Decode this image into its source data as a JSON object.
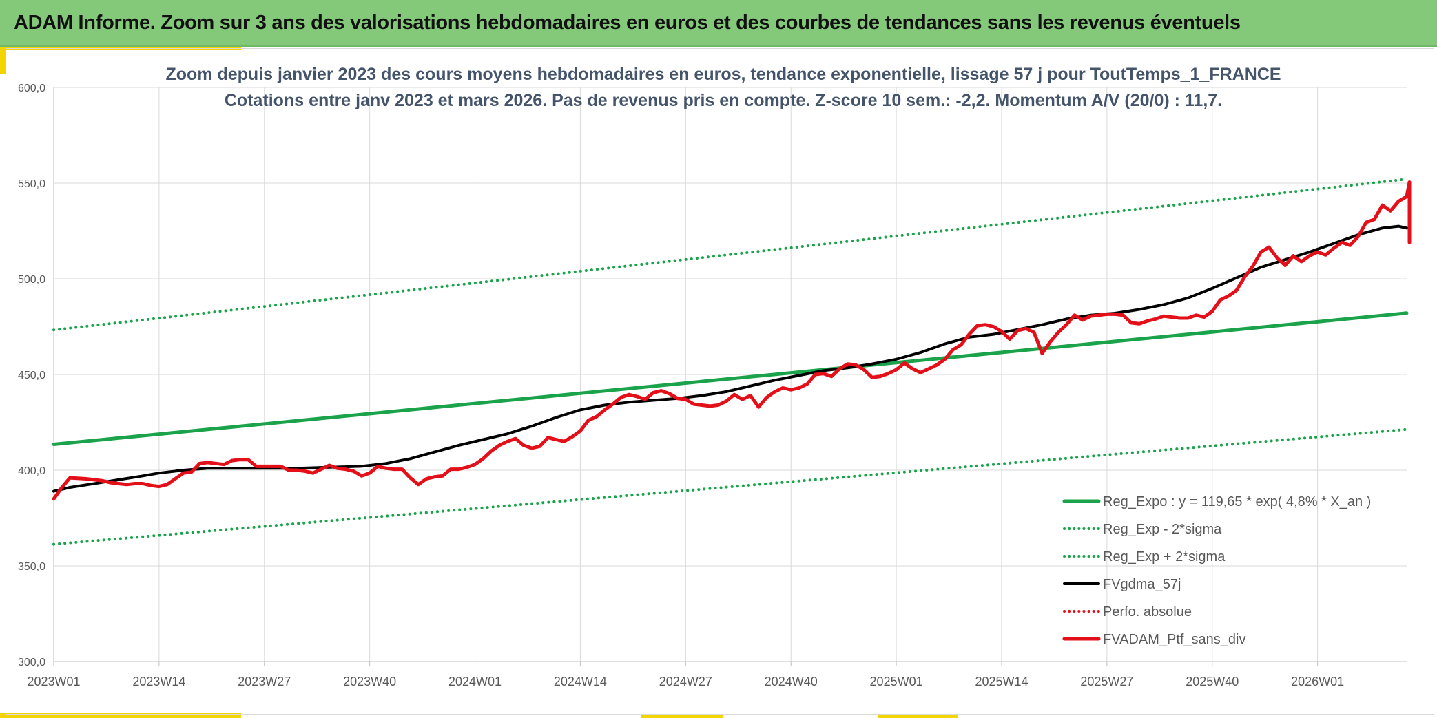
{
  "header": {
    "title": "ADAM Informe. Zoom sur 3 ans des valorisations hebdomadaires en euros et des courbes de tendances sans les revenus éventuels"
  },
  "colors": {
    "header_bg": "#84c87a",
    "reg_green": "#1aa34a",
    "ma_black": "#000000",
    "perf_red": "#e3101a",
    "grid": "#d9d9d9",
    "accent_yellow": "#f3d400"
  },
  "chart_data": {
    "type": "line",
    "title_lines": [
      "Zoom depuis janvier 2023 des cours moyens hebdomadaires en euros, tendance exponentielle, lissage 57 j pour ToutTemps_1_FRANCE",
      "Cotations entre janv 2023 et mars 2026. Pas de revenus pris en compte. Z-score 10 sem.: -2,2. Momentum A/V (20/0) : 11,7."
    ],
    "x_index_range": [
      0,
      167
    ],
    "ylim": [
      300,
      600
    ],
    "y_ticks": [
      "300,0",
      "350,0",
      "400,0",
      "450,0",
      "500,0",
      "550,0",
      "600,0"
    ],
    "x_ticks": [
      {
        "label": "2023W01",
        "i": 0
      },
      {
        "label": "2023W14",
        "i": 13
      },
      {
        "label": "2023W27",
        "i": 26
      },
      {
        "label": "2023W40",
        "i": 39
      },
      {
        "label": "2024W01",
        "i": 52
      },
      {
        "label": "2024W14",
        "i": 65
      },
      {
        "label": "2024W27",
        "i": 78
      },
      {
        "label": "2024W40",
        "i": 91
      },
      {
        "label": "2025W01",
        "i": 104
      },
      {
        "label": "2025W14",
        "i": 117
      },
      {
        "label": "2025W27",
        "i": 130
      },
      {
        "label": "2025W40",
        "i": 143
      },
      {
        "label": "2026W01",
        "i": 156
      }
    ],
    "series": [
      {
        "name": "Reg_Expo : y = 119,65 * exp( 4,8% *  X_an )",
        "style": "solid",
        "color": "#1aa34a",
        "width": 5,
        "points": [
          [
            0,
            413.5
          ],
          [
            167,
            482.1
          ]
        ]
      },
      {
        "name": "Reg_Exp - 2*sigma",
        "style": "dotted",
        "color": "#1aa34a",
        "width": 4,
        "points": [
          [
            0,
            361.3
          ],
          [
            167,
            421.3
          ]
        ]
      },
      {
        "name": "Reg_Exp + 2*sigma",
        "style": "dotted",
        "color": "#1aa34a",
        "width": 4,
        "points": [
          [
            0,
            473.3
          ],
          [
            167,
            552.1
          ]
        ]
      },
      {
        "name": "FVgdma_57j",
        "style": "solid",
        "color": "#000000",
        "width": 4,
        "points": [
          [
            0,
            389
          ],
          [
            2,
            391
          ],
          [
            5,
            393
          ],
          [
            8,
            395
          ],
          [
            11,
            397
          ],
          [
            13,
            398.5
          ],
          [
            16,
            400
          ],
          [
            19,
            401
          ],
          [
            22,
            401
          ],
          [
            26,
            401
          ],
          [
            30,
            401
          ],
          [
            34,
            401.5
          ],
          [
            38,
            402
          ],
          [
            41,
            403.5
          ],
          [
            44,
            406
          ],
          [
            47,
            409.5
          ],
          [
            50,
            413
          ],
          [
            53,
            416
          ],
          [
            56,
            419
          ],
          [
            59,
            423
          ],
          [
            62,
            427.5
          ],
          [
            65,
            431.5
          ],
          [
            68,
            434
          ],
          [
            71,
            435.5
          ],
          [
            74,
            436.5
          ],
          [
            77,
            437.5
          ],
          [
            80,
            439
          ],
          [
            83,
            441
          ],
          [
            86,
            444
          ],
          [
            89,
            447
          ],
          [
            92,
            449.5
          ],
          [
            95,
            452
          ],
          [
            98,
            453.5
          ],
          [
            101,
            455.5
          ],
          [
            104,
            458
          ],
          [
            107,
            461.5
          ],
          [
            110,
            466
          ],
          [
            113,
            469.5
          ],
          [
            116,
            471
          ],
          [
            119,
            473.5
          ],
          [
            122,
            476
          ],
          [
            125,
            479
          ],
          [
            128,
            481
          ],
          [
            131,
            482
          ],
          [
            134,
            484
          ],
          [
            137,
            486.5
          ],
          [
            140,
            490
          ],
          [
            143,
            495
          ],
          [
            146,
            500.5
          ],
          [
            149,
            506
          ],
          [
            152,
            510
          ],
          [
            155,
            514
          ],
          [
            158,
            518.5
          ],
          [
            161,
            523
          ],
          [
            164,
            526.5
          ],
          [
            166,
            527.5
          ],
          [
            167,
            526.5
          ]
        ]
      },
      {
        "name": "Perfo. absolue",
        "style": "dotted",
        "color": "#e3101a",
        "width": 4,
        "points": []
      },
      {
        "name": "FVADAM_Ptf_sans_div",
        "style": "solid",
        "color": "#e3101a",
        "width": 5,
        "points": [
          [
            0,
            385
          ],
          [
            1,
            391
          ],
          [
            2,
            396
          ],
          [
            4,
            395.5
          ],
          [
            5,
            395
          ],
          [
            6,
            394.5
          ],
          [
            7,
            393.5
          ],
          [
            8,
            393
          ],
          [
            9,
            392.5
          ],
          [
            10,
            393
          ],
          [
            11,
            393
          ],
          [
            12,
            392
          ],
          [
            13,
            391.5
          ],
          [
            14,
            392.5
          ],
          [
            15,
            395.5
          ],
          [
            16,
            398.5
          ],
          [
            17,
            399
          ],
          [
            18,
            403.5
          ],
          [
            19,
            404
          ],
          [
            20,
            403.5
          ],
          [
            21,
            403
          ],
          [
            22,
            405
          ],
          [
            23,
            405.5
          ],
          [
            24,
            405.5
          ],
          [
            25,
            402
          ],
          [
            26,
            402
          ],
          [
            27,
            402
          ],
          [
            28,
            402
          ],
          [
            29,
            400
          ],
          [
            30,
            400
          ],
          [
            31,
            399.5
          ],
          [
            32,
            398.5
          ],
          [
            33,
            400.5
          ],
          [
            34,
            402.5
          ],
          [
            35,
            401
          ],
          [
            36,
            400.5
          ],
          [
            37,
            399.5
          ],
          [
            38,
            397
          ],
          [
            39,
            398.5
          ],
          [
            40,
            402
          ],
          [
            41,
            401
          ],
          [
            42,
            400.5
          ],
          [
            43,
            400.5
          ],
          [
            44,
            396
          ],
          [
            45,
            392.5
          ],
          [
            46,
            395.5
          ],
          [
            47,
            396.5
          ],
          [
            48,
            397
          ],
          [
            49,
            400.5
          ],
          [
            50,
            400.5
          ],
          [
            51,
            401.5
          ],
          [
            52,
            403
          ],
          [
            53,
            406
          ],
          [
            54,
            410
          ],
          [
            55,
            413
          ],
          [
            56,
            415
          ],
          [
            57,
            416.5
          ],
          [
            58,
            413
          ],
          [
            59,
            411.5
          ],
          [
            60,
            412.5
          ],
          [
            61,
            417
          ],
          [
            62,
            416
          ],
          [
            63,
            415
          ],
          [
            64,
            417.5
          ],
          [
            65,
            420.5
          ],
          [
            66,
            426
          ],
          [
            67,
            428
          ],
          [
            68,
            431.5
          ],
          [
            69,
            434.5
          ],
          [
            70,
            438
          ],
          [
            71,
            439.5
          ],
          [
            72,
            438.5
          ],
          [
            73,
            437
          ],
          [
            74,
            440.5
          ],
          [
            75,
            441.5
          ],
          [
            76,
            440
          ],
          [
            77,
            437.5
          ],
          [
            78,
            437
          ],
          [
            79,
            434.5
          ],
          [
            80,
            434
          ],
          [
            81,
            433.5
          ],
          [
            82,
            434
          ],
          [
            83,
            436
          ],
          [
            84,
            439.5
          ],
          [
            85,
            437
          ],
          [
            86,
            439
          ],
          [
            87,
            433
          ],
          [
            88,
            438
          ],
          [
            89,
            441
          ],
          [
            90,
            443
          ],
          [
            91,
            442
          ],
          [
            92,
            443
          ],
          [
            93,
            445
          ],
          [
            94,
            450
          ],
          [
            95,
            450.5
          ],
          [
            96,
            449
          ],
          [
            97,
            453
          ],
          [
            98,
            455.5
          ],
          [
            99,
            455
          ],
          [
            100,
            452.5
          ],
          [
            101,
            448.5
          ],
          [
            102,
            449
          ],
          [
            103,
            450.5
          ],
          [
            104,
            452.5
          ],
          [
            105,
            456
          ],
          [
            106,
            453
          ],
          [
            107,
            451
          ],
          [
            108,
            453
          ],
          [
            109,
            455
          ],
          [
            110,
            458
          ],
          [
            111,
            463
          ],
          [
            112,
            465.5
          ],
          [
            113,
            471
          ],
          [
            114,
            475.5
          ],
          [
            115,
            476
          ],
          [
            116,
            475
          ],
          [
            117,
            472.5
          ],
          [
            118,
            468.5
          ],
          [
            119,
            473
          ],
          [
            120,
            474
          ],
          [
            121,
            472
          ],
          [
            122,
            461
          ],
          [
            123,
            467
          ],
          [
            124,
            472
          ],
          [
            125,
            476
          ],
          [
            126,
            481
          ],
          [
            127,
            478.5
          ],
          [
            128,
            480.5
          ],
          [
            129,
            481
          ],
          [
            130,
            481.5
          ],
          [
            131,
            481.5
          ],
          [
            132,
            481
          ],
          [
            133,
            477
          ],
          [
            134,
            476.5
          ],
          [
            135,
            478
          ],
          [
            136,
            479
          ],
          [
            137,
            480.5
          ],
          [
            138,
            480
          ],
          [
            139,
            479.5
          ],
          [
            140,
            479.5
          ],
          [
            141,
            481
          ],
          [
            142,
            480
          ],
          [
            143,
            483
          ],
          [
            144,
            489
          ],
          [
            145,
            491
          ],
          [
            146,
            494
          ],
          [
            147,
            501
          ],
          [
            148,
            506.5
          ],
          [
            149,
            514
          ],
          [
            150,
            516.5
          ],
          [
            151,
            511
          ],
          [
            152,
            507
          ],
          [
            153,
            512
          ],
          [
            154,
            509
          ],
          [
            155,
            512
          ],
          [
            156,
            514
          ],
          [
            157,
            512.5
          ],
          [
            158,
            516
          ],
          [
            159,
            519
          ],
          [
            160,
            517.5
          ],
          [
            161,
            522
          ],
          [
            162,
            529.5
          ],
          [
            163,
            531
          ],
          [
            164,
            538.5
          ],
          [
            165,
            535.5
          ],
          [
            166,
            540.5
          ],
          [
            167,
            543
          ],
          [
            168,
            550.5
          ],
          [
            169,
            546
          ],
          [
            170,
            541
          ],
          [
            171,
            531
          ],
          [
            171.5,
            519
          ]
        ]
      }
    ]
  }
}
